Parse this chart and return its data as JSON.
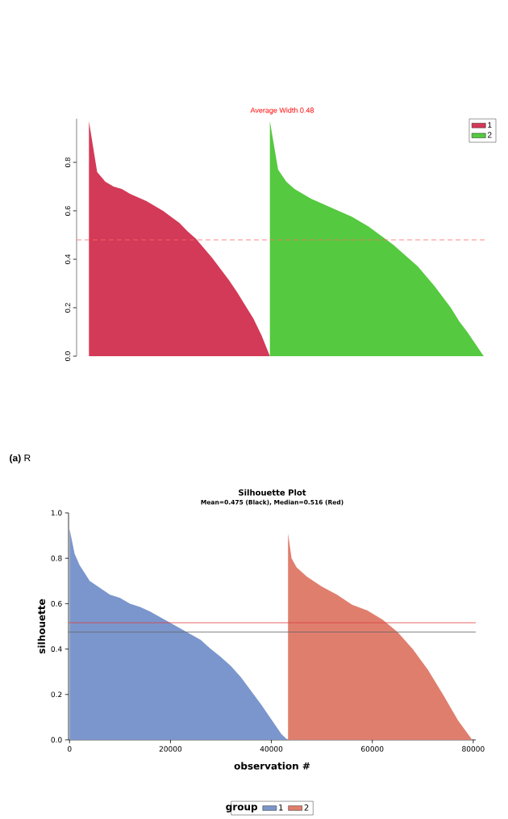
{
  "chart_data": [
    {
      "type": "area",
      "title": "Average Width 0.48",
      "categories": [
        null,
        null,
        null,
        null,
        null,
        null,
        null,
        null,
        null,
        null,
        null,
        null,
        null,
        null,
        null,
        null,
        null,
        null,
        null,
        null,
        null,
        null,
        null,
        null,
        null,
        null,
        null,
        null,
        null,
        null,
        null,
        null,
        null,
        null,
        null,
        null,
        null,
        null,
        null,
        null,
        null,
        null,
        null,
        null,
        null,
        null,
        null,
        null,
        null
      ],
      "series": [
        {
          "name": "1",
          "color": "#d33a57",
          "values": [
            0.97,
            0.76,
            0.72,
            0.7,
            0.69,
            0.67,
            0.655,
            0.64,
            0.62,
            0.6,
            0.575,
            0.55,
            0.515,
            0.485,
            0.445,
            0.405,
            0.36,
            0.315,
            0.265,
            0.21,
            0.155,
            0.085,
            0,
            null,
            null,
            null,
            null,
            null,
            null,
            null,
            null,
            null,
            null,
            null,
            null,
            null,
            null,
            null,
            null,
            null,
            null,
            null,
            null,
            null,
            null,
            null,
            null,
            null,
            null
          ]
        },
        {
          "name": "2",
          "color": "#55c93f",
          "values": [
            null,
            null,
            null,
            null,
            null,
            null,
            null,
            null,
            null,
            null,
            null,
            null,
            null,
            null,
            null,
            null,
            null,
            null,
            null,
            null,
            null,
            null,
            0.97,
            0.77,
            0.72,
            0.69,
            0.67,
            0.65,
            0.635,
            0.62,
            0.605,
            0.59,
            0.575,
            0.555,
            0.535,
            0.51,
            0.485,
            0.46,
            0.43,
            0.4,
            0.37,
            0.33,
            0.29,
            0.245,
            0.2,
            0.145,
            0.1,
            0.05,
            0
          ]
        }
      ],
      "ylim": [
        0,
        0.98
      ],
      "yticks": [
        {
          "value": 0,
          "label": "0.0"
        },
        {
          "value": 0.2,
          "label": "0.2"
        },
        {
          "value": 0.4,
          "label": "0.4"
        },
        {
          "value": 0.6,
          "label": "0.6"
        },
        {
          "value": 0.8,
          "label": "0.8"
        }
      ],
      "ref_lines": [
        {
          "axis": "y",
          "value": 0.48,
          "color": "#ff6b6b",
          "line_style": "dashed"
        }
      ],
      "legend": "top right",
      "tick_labels": "y",
      "annotations": [
        "**(a)** R"
      ]
    },
    {
      "type": "area",
      "title": "Silhouette Plot",
      "subtitle": "Mean=0.475 (Black), Median=0.516 (Red)",
      "xlabel": "observation #",
      "ylabel": "silhouette",
      "legend_title": "group",
      "series": [
        {
          "name": "1",
          "color": "#7b96cc",
          "x": [
            0,
            1000,
            2000,
            4000,
            6000,
            8000,
            10000,
            12000,
            14000,
            16000,
            18000,
            20000,
            22000,
            24000,
            26000,
            28000,
            30000,
            32000,
            34000,
            36000,
            38000,
            40000,
            42000,
            43200
          ],
          "values": [
            0.93,
            0.82,
            0.77,
            0.7,
            0.67,
            0.64,
            0.625,
            0.6,
            0.585,
            0.565,
            0.54,
            0.515,
            0.49,
            0.465,
            0.44,
            0.4,
            0.365,
            0.325,
            0.275,
            0.215,
            0.155,
            0.09,
            0.025,
            0
          ]
        },
        {
          "name": "2",
          "color": "#e07e6e",
          "x": [
            43300,
            44000,
            45000,
            47000,
            50000,
            53000,
            56000,
            59000,
            62000,
            65000,
            68000,
            71000,
            74000,
            77000,
            79800
          ],
          "values": [
            0.91,
            0.8,
            0.76,
            0.72,
            0.675,
            0.64,
            0.595,
            0.57,
            0.53,
            0.475,
            0.4,
            0.31,
            0.2,
            0.085,
            0
          ]
        }
      ],
      "xlim": [
        -200,
        80500
      ],
      "xticks": [
        0,
        20000,
        40000,
        60000,
        80000
      ],
      "ylim": [
        0,
        1
      ],
      "yticks": [
        {
          "value": 0,
          "label": "0.0"
        },
        {
          "value": 0.2,
          "label": "0.2"
        },
        {
          "value": 0.4,
          "label": "0.4"
        },
        {
          "value": 0.6,
          "label": "0.6"
        },
        {
          "value": 0.8,
          "label": "0.8"
        },
        {
          "value": 1,
          "label": "1.0"
        }
      ],
      "ref_lines": [
        {
          "axis": "y",
          "value": 0.516,
          "color": "#e04040"
        },
        {
          "axis": "y",
          "value": 0.475,
          "color": "#666666"
        }
      ],
      "legend": "bottom"
    }
  ]
}
